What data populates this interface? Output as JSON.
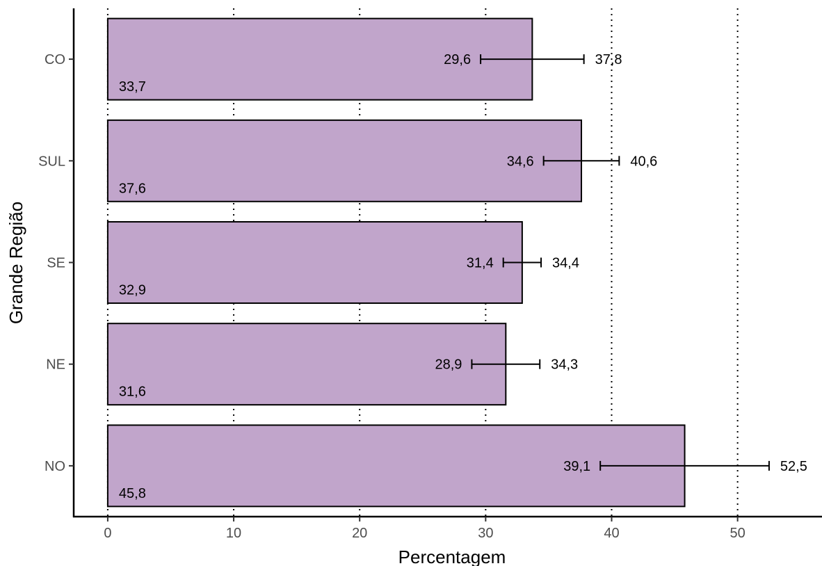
{
  "chart_data": {
    "type": "bar",
    "orientation": "horizontal",
    "categories": [
      "NO",
      "NE",
      "SE",
      "SUL",
      "CO"
    ],
    "values": [
      45.8,
      31.6,
      32.9,
      37.6,
      33.7
    ],
    "value_labels": [
      "45,8",
      "31,6",
      "32,9",
      "37,6",
      "33,7"
    ],
    "ci_lower": [
      39.1,
      28.9,
      31.4,
      34.6,
      29.6
    ],
    "ci_lower_labels": [
      "39,1",
      "28,9",
      "31,4",
      "34,6",
      "29,6"
    ],
    "ci_upper": [
      52.5,
      34.3,
      34.4,
      40.6,
      37.8
    ],
    "ci_upper_labels": [
      "52,5",
      "34,3",
      "34,4",
      "40,6",
      "37,8"
    ],
    "xlabel": "Percentagem",
    "ylabel": "Grande Região",
    "xlim": [
      -2.7,
      56.7
    ],
    "xticks": [
      0,
      10,
      20,
      30,
      40,
      50
    ],
    "xtick_labels": [
      "0",
      "10",
      "20",
      "30",
      "40",
      "50"
    ],
    "grid": "vertical dotted",
    "bar_color": "#c1a5cb",
    "bar_border_color": "#000000"
  }
}
